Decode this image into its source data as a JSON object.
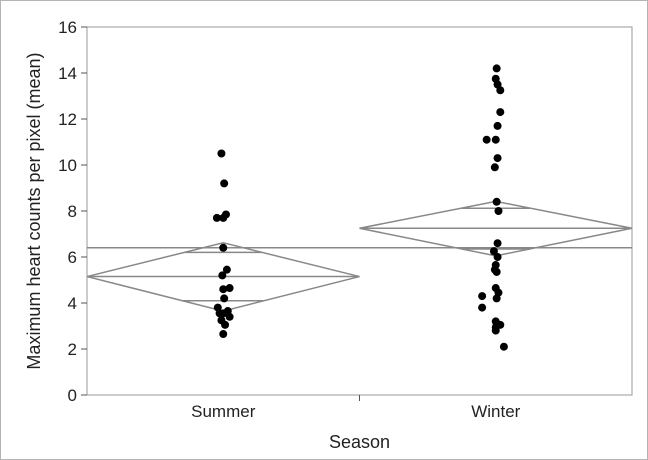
{
  "chart_data": {
    "type": "scatter",
    "xlabel": "Season",
    "ylabel": "Maximum heart counts per pixel (mean)",
    "ylim": [
      0,
      16
    ],
    "yticks": [
      0,
      2,
      4,
      6,
      8,
      10,
      12,
      14,
      16
    ],
    "categories": [
      "Summer",
      "Winter"
    ],
    "grand_mean": 6.4,
    "groups": [
      {
        "category": "Summer",
        "mean": 5.15,
        "ci_lower": 3.65,
        "ci_upper": 6.62,
        "overlap_lower": 4.1,
        "overlap_upper": 6.2,
        "points": [
          {
            "offset": -0.35,
            "y": 7.7
          },
          {
            "offset": 0.0,
            "y": 7.7
          },
          {
            "offset": 0.15,
            "y": 7.85
          },
          {
            "offset": -0.1,
            "y": 10.5
          },
          {
            "offset": 0.05,
            "y": 9.2
          },
          {
            "offset": 0.0,
            "y": 6.4
          },
          {
            "offset": -0.05,
            "y": 5.2
          },
          {
            "offset": 0.2,
            "y": 5.45
          },
          {
            "offset": 0.0,
            "y": 4.6
          },
          {
            "offset": 0.35,
            "y": 4.65
          },
          {
            "offset": 0.05,
            "y": 4.2
          },
          {
            "offset": -0.3,
            "y": 3.8
          },
          {
            "offset": -0.2,
            "y": 3.55
          },
          {
            "offset": 0.0,
            "y": 3.55
          },
          {
            "offset": 0.25,
            "y": 3.65
          },
          {
            "offset": 0.35,
            "y": 3.4
          },
          {
            "offset": -0.1,
            "y": 3.25
          },
          {
            "offset": 0.1,
            "y": 3.05
          },
          {
            "offset": 0.0,
            "y": 2.65
          }
        ]
      },
      {
        "category": "Winter",
        "mean": 7.25,
        "ci_lower": 6.05,
        "ci_upper": 8.42,
        "overlap_lower": 6.35,
        "overlap_upper": 8.12,
        "points": [
          {
            "offset": 0.05,
            "y": 14.2
          },
          {
            "offset": 0.0,
            "y": 13.75
          },
          {
            "offset": 0.1,
            "y": 13.5
          },
          {
            "offset": 0.25,
            "y": 13.25
          },
          {
            "offset": 0.25,
            "y": 12.3
          },
          {
            "offset": 0.1,
            "y": 11.7
          },
          {
            "offset": -0.5,
            "y": 11.1
          },
          {
            "offset": 0.0,
            "y": 11.1
          },
          {
            "offset": 0.1,
            "y": 10.3
          },
          {
            "offset": -0.05,
            "y": 9.9
          },
          {
            "offset": 0.05,
            "y": 8.4
          },
          {
            "offset": 0.15,
            "y": 8.0
          },
          {
            "offset": 0.1,
            "y": 6.6
          },
          {
            "offset": -0.1,
            "y": 6.25
          },
          {
            "offset": 0.1,
            "y": 6.0
          },
          {
            "offset": 0.0,
            "y": 5.65
          },
          {
            "offset": -0.05,
            "y": 5.45
          },
          {
            "offset": 0.05,
            "y": 5.35
          },
          {
            "offset": 0.0,
            "y": 4.65
          },
          {
            "offset": -0.75,
            "y": 4.3
          },
          {
            "offset": 0.15,
            "y": 4.45
          },
          {
            "offset": 0.05,
            "y": 4.2
          },
          {
            "offset": -0.75,
            "y": 3.8
          },
          {
            "offset": 0.0,
            "y": 3.2
          },
          {
            "offset": 0.0,
            "y": 2.95
          },
          {
            "offset": 0.25,
            "y": 3.05
          },
          {
            "offset": 0.0,
            "y": 2.8
          },
          {
            "offset": 0.45,
            "y": 2.1
          }
        ]
      }
    ]
  }
}
